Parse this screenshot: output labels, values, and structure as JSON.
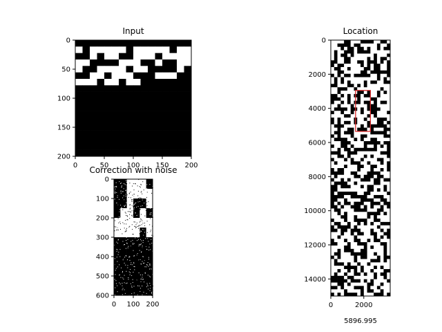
{
  "chart_data": [
    {
      "type": "heatmap",
      "title": "Input",
      "xlabel": "",
      "ylabel": "",
      "xlim": [
        0,
        200
      ],
      "ylim": [
        200,
        0
      ],
      "x_ticks": [
        0,
        50,
        100,
        150,
        200
      ],
      "y_ticks": [
        0,
        50,
        100,
        150,
        200
      ],
      "x_tick_labels": [
        "0",
        "50",
        "100",
        "150",
        "200"
      ],
      "y_tick_labels": [
        "0",
        "50",
        "100",
        "150",
        "200"
      ],
      "colormap": "gray",
      "image_rows": [
        "1111111111111111",
        "0100000100000100",
        "1101001100010000",
        "0011110001101100",
        "0110000100111101",
        "1100100011100011",
        "0001001001111111",
        "1111111111111111",
        "1111111111111111",
        "1111111111111111",
        "1111111111111111",
        "1111111111111111",
        "1111111111111111",
        "1111111111111111",
        "1111111111111111",
        "1111111111111111",
        "1111111111111111",
        "1111111111111111"
      ]
    },
    {
      "type": "heatmap",
      "title": "Correction with noise",
      "xlabel": "",
      "ylabel": "",
      "xlim": [
        0,
        200
      ],
      "ylim": [
        600,
        0
      ],
      "x_ticks": [
        0,
        100,
        200
      ],
      "y_ticks": [
        0,
        100,
        200,
        300,
        400,
        500,
        600
      ],
      "x_tick_labels": [
        "0",
        "100",
        "200"
      ],
      "y_tick_labels": [
        "0",
        "100",
        "200",
        "300",
        "400",
        "500",
        "600"
      ],
      "colormap": "gray",
      "noise": "salt-and-pepper",
      "image_rows": [
        "110001",
        "110000",
        "110110",
        "100101",
        "000000",
        "000010",
        "111111",
        "111111",
        "111111",
        "111111",
        "111111",
        "111111"
      ]
    },
    {
      "type": "heatmap",
      "title": "Location",
      "xlabel": "5896.995",
      "ylabel": "",
      "xlim": [
        0,
        3600
      ],
      "ylim": [
        15000,
        0
      ],
      "x_ticks": [
        0,
        2000
      ],
      "y_ticks": [
        0,
        2000,
        4000,
        6000,
        8000,
        10000,
        12000,
        14000
      ],
      "x_tick_labels": [
        "0",
        "2000"
      ],
      "y_tick_labels": [
        "0",
        "2000",
        "4000",
        "6000",
        "8000",
        "10000",
        "12000",
        "14000"
      ],
      "colormap": "gray",
      "pattern": "random binary blocks",
      "highlight_box": {
        "x0": 1500,
        "x1": 2400,
        "y0": 2950,
        "y1": 5350,
        "color": "#d62728"
      }
    }
  ]
}
